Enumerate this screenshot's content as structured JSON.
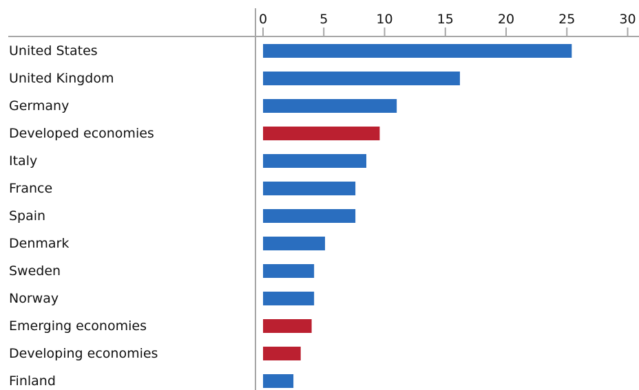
{
  "chart_data": {
    "type": "bar",
    "orientation": "horizontal",
    "title": "",
    "xlabel": "",
    "ylabel": "",
    "xlim": [
      0,
      30
    ],
    "ticks": [
      0,
      5,
      10,
      15,
      20,
      25,
      30
    ],
    "tick_labels": [
      "0",
      "5",
      "10",
      "15",
      "20",
      "25",
      "30"
    ],
    "x_axis_position": "top",
    "grid": false,
    "legend": "none",
    "categories": [
      "United States",
      "United Kingdom",
      "Germany",
      "Developed economies",
      "Italy",
      "France",
      "Spain",
      "Denmark",
      "Sweden",
      "Norway",
      "Emerging economies",
      "Developing economies",
      "Finland"
    ],
    "values": [
      25.4,
      16.2,
      11.0,
      9.6,
      8.5,
      7.6,
      7.6,
      5.1,
      4.2,
      4.2,
      4.0,
      3.1,
      2.5
    ],
    "bar_colors": [
      "#2a6ebf",
      "#2a6ebf",
      "#2a6ebf",
      "#bb2030",
      "#2a6ebf",
      "#2a6ebf",
      "#2a6ebf",
      "#2a6ebf",
      "#2a6ebf",
      "#2a6ebf",
      "#bb2030",
      "#bb2030",
      "#2a6ebf"
    ],
    "colors": {
      "country": "#2a6ebf",
      "economy_group": "#bb2030",
      "axis": "#a6a6a6"
    }
  }
}
